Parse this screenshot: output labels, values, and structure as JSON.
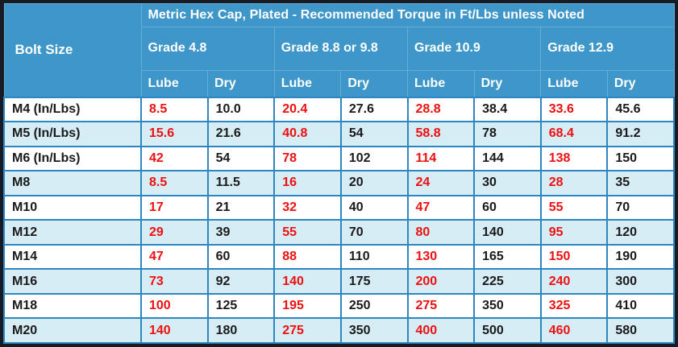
{
  "colors": {
    "header_bg": "#3e97c8",
    "header_divider": "#64aed6",
    "grid_border": "#2e86c1",
    "row_alt_bg": "#d6edf6",
    "row_bg": "#ffffff",
    "lube_value_red": "#ee1010",
    "dry_value_black": "#1a1a1a",
    "header_text": "#ffffff",
    "outer_frame": "#191b24"
  },
  "table": {
    "title": "Metric Hex Cap, Plated - Recommended Torque in Ft/Lbs unless Noted",
    "corner_header": "Bolt Size",
    "grade_headers": [
      "Grade 4.8",
      "Grade 8.8 or 9.8",
      "Grade 10.9",
      "Grade 12.9"
    ],
    "sub_headers": [
      "Lube",
      "Dry",
      "Lube",
      "Dry",
      "Lube",
      "Dry",
      "Lube",
      "Dry"
    ],
    "rows": [
      {
        "bolt": "M4 (In/Lbs)",
        "values": [
          "8.5",
          "10.0",
          "20.4",
          "27.6",
          "28.8",
          "38.4",
          "33.6",
          "45.6"
        ]
      },
      {
        "bolt": "M5 (In/Lbs)",
        "values": [
          "15.6",
          "21.6",
          "40.8",
          "54",
          "58.8",
          "78",
          "68.4",
          "91.2"
        ]
      },
      {
        "bolt": "M6 (In/Lbs)",
        "values": [
          "42",
          "54",
          "78",
          "102",
          "114",
          "144",
          "138",
          "150"
        ]
      },
      {
        "bolt": "M8",
        "values": [
          "8.5",
          "11.5",
          "16",
          "20",
          "24",
          "30",
          "28",
          "35"
        ]
      },
      {
        "bolt": "M10",
        "values": [
          "17",
          "21",
          "32",
          "40",
          "47",
          "60",
          "55",
          "70"
        ]
      },
      {
        "bolt": "M12",
        "values": [
          "29",
          "39",
          "55",
          "70",
          "80",
          "140",
          "95",
          "120"
        ]
      },
      {
        "bolt": "M14",
        "values": [
          "47",
          "60",
          "88",
          "110",
          "130",
          "165",
          "150",
          "190"
        ]
      },
      {
        "bolt": "M16",
        "values": [
          "73",
          "92",
          "140",
          "175",
          "200",
          "225",
          "240",
          "300"
        ]
      },
      {
        "bolt": "M18",
        "values": [
          "100",
          "125",
          "195",
          "250",
          "275",
          "350",
          "325",
          "410"
        ]
      },
      {
        "bolt": "M20",
        "values": [
          "140",
          "180",
          "275",
          "350",
          "400",
          "500",
          "460",
          "580"
        ]
      }
    ]
  },
  "chart_data": {
    "type": "table",
    "title": "Metric Hex Cap, Plated - Recommended Torque in Ft/Lbs unless Noted",
    "columns": [
      "Bolt Size",
      "Grade 4.8 Lube",
      "Grade 4.8 Dry",
      "Grade 8.8 or 9.8 Lube",
      "Grade 8.8 or 9.8 Dry",
      "Grade 10.9 Lube",
      "Grade 10.9 Dry",
      "Grade 12.9 Lube",
      "Grade 12.9 Dry"
    ],
    "rows": [
      [
        "M4 (In/Lbs)",
        8.5,
        10.0,
        20.4,
        27.6,
        28.8,
        38.4,
        33.6,
        45.6
      ],
      [
        "M5 (In/Lbs)",
        15.6,
        21.6,
        40.8,
        54,
        58.8,
        78,
        68.4,
        91.2
      ],
      [
        "M6 (In/Lbs)",
        42,
        54,
        78,
        102,
        114,
        144,
        138,
        150
      ],
      [
        "M8",
        8.5,
        11.5,
        16,
        20,
        24,
        30,
        28,
        35
      ],
      [
        "M10",
        17,
        21,
        32,
        40,
        47,
        60,
        55,
        70
      ],
      [
        "M12",
        29,
        39,
        55,
        70,
        80,
        140,
        95,
        120
      ],
      [
        "M14",
        47,
        60,
        88,
        110,
        130,
        165,
        150,
        190
      ],
      [
        "M16",
        73,
        92,
        140,
        175,
        200,
        225,
        240,
        300
      ],
      [
        "M18",
        100,
        125,
        195,
        250,
        275,
        350,
        325,
        410
      ],
      [
        "M20",
        140,
        180,
        275,
        350,
        400,
        500,
        460,
        580
      ]
    ],
    "notes": "Lube columns rendered in red, Dry columns in black; M4-M6 values are in In/Lbs, remaining rows in Ft/Lbs"
  }
}
